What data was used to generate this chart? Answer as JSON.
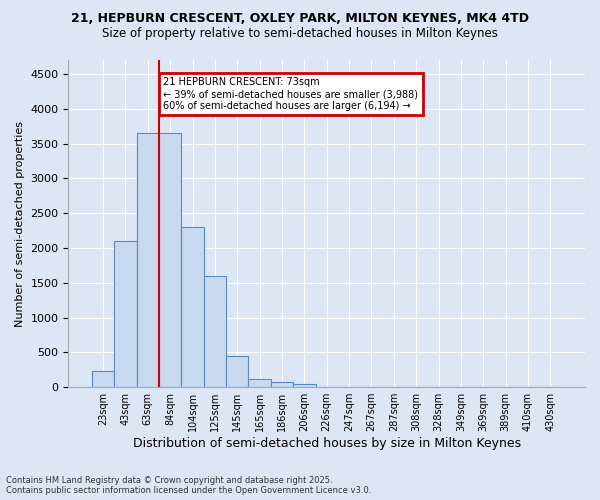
{
  "title_line1": "21, HEPBURN CRESCENT, OXLEY PARK, MILTON KEYNES, MK4 4TD",
  "title_line2": "Size of property relative to semi-detached houses in Milton Keynes",
  "xlabel": "Distribution of semi-detached houses by size in Milton Keynes",
  "ylabel": "Number of semi-detached properties",
  "categories": [
    "23sqm",
    "43sqm",
    "63sqm",
    "84sqm",
    "104sqm",
    "125sqm",
    "145sqm",
    "165sqm",
    "186sqm",
    "206sqm",
    "226sqm",
    "247sqm",
    "267sqm",
    "287sqm",
    "308sqm",
    "328sqm",
    "349sqm",
    "369sqm",
    "389sqm",
    "410sqm",
    "430sqm"
  ],
  "values": [
    230,
    2100,
    3650,
    3650,
    2300,
    1600,
    450,
    125,
    75,
    50,
    0,
    0,
    0,
    0,
    0,
    0,
    0,
    0,
    0,
    0,
    0
  ],
  "bar_color": "#c9d9f0",
  "bar_edge_color": "#5a8ac6",
  "vline_bin_index": 2,
  "vline_color": "#cc0000",
  "annotation_title": "21 HEPBURN CRESCENT: 73sqm",
  "annotation_line1": "← 39% of semi-detached houses are smaller (3,988)",
  "annotation_line2": "60% of semi-detached houses are larger (6,194) →",
  "annotation_box_color": "#cc0000",
  "ylim": [
    0,
    4700
  ],
  "yticks": [
    0,
    500,
    1000,
    1500,
    2000,
    2500,
    3000,
    3500,
    4000,
    4500
  ],
  "bg_color": "#dce6f5",
  "plot_bg_color": "#dce6f5",
  "grid_color": "#ffffff",
  "footnote_line1": "Contains HM Land Registry data © Crown copyright and database right 2025.",
  "footnote_line2": "Contains public sector information licensed under the Open Government Licence v3.0."
}
